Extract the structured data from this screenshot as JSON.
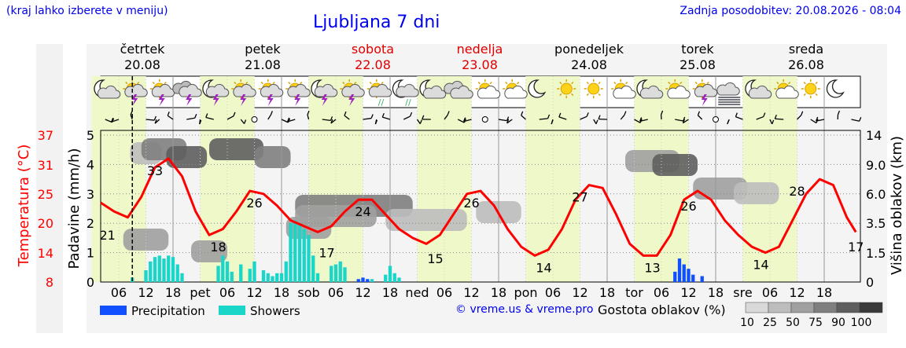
{
  "header": {
    "note": "(kraj lahko izberete v meniju)",
    "title": "Ljubljana 7 dni",
    "updated": "Zadnja posodobitev: 20.08.2026 - 08:04"
  },
  "days": [
    {
      "name": "četrtek",
      "date": "20.08",
      "weekend": false,
      "sym": [
        "moon-cloud",
        "sun-thunder",
        "sun-thunder",
        "cloud-thunder"
      ]
    },
    {
      "name": "petek",
      "date": "21.08",
      "weekend": false,
      "sym": [
        "moon-thunder",
        "sun-thunder",
        "sun-thunder",
        "sun-thunder"
      ]
    },
    {
      "name": "sobota",
      "date": "22.08",
      "weekend": true,
      "sym": [
        "moon-thunder",
        "sun-thunder",
        "sun-rain",
        "moon-rain"
      ]
    },
    {
      "name": "nedelja",
      "date": "23.08",
      "weekend": true,
      "sym": [
        "moon-cloud",
        "cloud",
        "sun-cloud",
        "sun-cloud"
      ]
    },
    {
      "name": "ponedeljek",
      "date": "24.08",
      "weekend": false,
      "sym": [
        "moon",
        "sun",
        "sun",
        "sun-cloud"
      ]
    },
    {
      "name": "torek",
      "date": "25.08",
      "weekend": false,
      "sym": [
        "moon-cloud",
        "sun-cloud",
        "sun-thunder",
        "fog"
      ]
    },
    {
      "name": "sreda",
      "date": "26.08",
      "weekend": false,
      "sym": [
        "moon-cloud",
        "sun-cloud",
        "sun",
        "moon"
      ]
    }
  ],
  "chart_data": {
    "type": "line",
    "xaxis": {
      "tick_labels": [
        "06",
        "12",
        "18",
        "pet",
        "06",
        "12",
        "18",
        "sob",
        "06",
        "12",
        "18",
        "ned",
        "06",
        "12",
        "18",
        "pon",
        "06",
        "12",
        "18",
        "tor",
        "06",
        "12",
        "18",
        "sre",
        "06",
        "12",
        "18"
      ]
    },
    "left_axis_precip": {
      "label": "Padavine (mm/h)",
      "ticks": [
        "0",
        "1",
        "2",
        "3",
        "4",
        "5"
      ],
      "ylim": [
        0,
        5
      ]
    },
    "left_axis_temp": {
      "label": "Temperatura (°C)",
      "ticks": [
        "8",
        "14",
        "20",
        "25",
        "31",
        "37"
      ],
      "color": "#ff0000"
    },
    "right_axis_cloud": {
      "label": "Višina oblakov (km)",
      "ticks": [
        "0",
        "1.5",
        "3.5",
        "6.0",
        "9.0",
        "14"
      ]
    },
    "temperature": {
      "color": "#ff0000",
      "x_hours": [
        0,
        3,
        6,
        9,
        12,
        15,
        18,
        21,
        24,
        27,
        30,
        33,
        36,
        39,
        42,
        45,
        48,
        51,
        54,
        57,
        60,
        63,
        66,
        69,
        72,
        75,
        78,
        81,
        84,
        87,
        90,
        93,
        96,
        99,
        102,
        105,
        108,
        111,
        114,
        117,
        120,
        123,
        126,
        129,
        132,
        135,
        138,
        141,
        144,
        147,
        150,
        153,
        156,
        159,
        162,
        165,
        167
      ],
      "values_precip_scale": [
        2.7,
        2.4,
        2.2,
        2.9,
        3.9,
        4.2,
        3.6,
        2.4,
        1.6,
        1.8,
        2.4,
        3.1,
        3.0,
        2.6,
        2.1,
        1.9,
        1.7,
        1.9,
        2.4,
        2.8,
        2.8,
        2.3,
        1.8,
        1.5,
        1.3,
        1.6,
        2.3,
        3.0,
        3.1,
        2.6,
        1.8,
        1.2,
        0.9,
        1.1,
        1.8,
        2.8,
        3.3,
        3.2,
        2.3,
        1.3,
        0.9,
        0.9,
        1.6,
        2.8,
        3.1,
        2.8,
        2.1,
        1.6,
        1.2,
        1.0,
        1.2,
        2.1,
        3.0,
        3.5,
        3.3,
        2.2,
        1.7
      ],
      "labels": [
        {
          "t": "21",
          "h": 1.5,
          "v": 1.6
        },
        {
          "t": "33",
          "h": 12,
          "v": 3.8
        },
        {
          "t": "18",
          "h": 26,
          "v": 1.2
        },
        {
          "t": "26",
          "h": 34,
          "v": 2.7
        },
        {
          "t": "17",
          "h": 50,
          "v": 1.0
        },
        {
          "t": "24",
          "h": 58,
          "v": 2.4
        },
        {
          "t": "15",
          "h": 74,
          "v": 0.8
        },
        {
          "t": "26",
          "h": 82,
          "v": 2.7
        },
        {
          "t": "14",
          "h": 98,
          "v": 0.5
        },
        {
          "t": "27",
          "h": 106,
          "v": 2.9
        },
        {
          "t": "13",
          "h": 122,
          "v": 0.5
        },
        {
          "t": "26",
          "h": 130,
          "v": 2.6
        },
        {
          "t": "14",
          "h": 146,
          "v": 0.6
        },
        {
          "t": "28",
          "h": 154,
          "v": 3.1
        },
        {
          "t": "17",
          "h": 167,
          "v": 1.2
        }
      ]
    },
    "showers": {
      "color": "#1ad6c8",
      "bars": [
        [
          7,
          0.15
        ],
        [
          10,
          0.4
        ],
        [
          11,
          0.7
        ],
        [
          12,
          0.85
        ],
        [
          13,
          0.9
        ],
        [
          14,
          0.8
        ],
        [
          15,
          0.9
        ],
        [
          16,
          0.85
        ],
        [
          17,
          0.6
        ],
        [
          18,
          0.3
        ],
        [
          26,
          0.55
        ],
        [
          27,
          0.9
        ],
        [
          28,
          0.7
        ],
        [
          29,
          0.35
        ],
        [
          31,
          0.6
        ],
        [
          33,
          0.45
        ],
        [
          34,
          0.7
        ],
        [
          36,
          0.4
        ],
        [
          37,
          0.3
        ],
        [
          38,
          0.2
        ],
        [
          39,
          0.3
        ],
        [
          40,
          0.3
        ],
        [
          41,
          0.7
        ],
        [
          42,
          2.0
        ],
        [
          43,
          2.1
        ],
        [
          44,
          2.0
        ],
        [
          45,
          1.8
        ],
        [
          46,
          1.6
        ],
        [
          47,
          0.9
        ],
        [
          48,
          0.3
        ],
        [
          51,
          0.55
        ],
        [
          52,
          0.6
        ],
        [
          53,
          0.7
        ],
        [
          54,
          0.5
        ],
        [
          60,
          0.1
        ],
        [
          63,
          0.25
        ],
        [
          64,
          0.55
        ],
        [
          65,
          0.3
        ],
        [
          66,
          0.15
        ]
      ]
    },
    "precipitation": {
      "color": "#1050ff",
      "bars": [
        [
          57,
          0.1
        ],
        [
          58,
          0.15
        ],
        [
          59,
          0.1
        ],
        [
          127,
          0.35
        ],
        [
          128,
          0.8
        ],
        [
          129,
          0.6
        ],
        [
          130,
          0.45
        ],
        [
          131,
          0.25
        ],
        [
          133,
          0.2
        ]
      ]
    },
    "legend": [
      {
        "name": "Precipitation",
        "color": "#1050ff"
      },
      {
        "name": "Showers",
        "color": "#1ad6c8"
      }
    ],
    "cloud_legend": {
      "title": "Gostota oblakov (%)",
      "labels": [
        "10",
        "25",
        "50",
        "75",
        "90",
        "100"
      ],
      "colors": [
        "#d9d9d9",
        "#bdbdbd",
        "#a0a0a0",
        "#7f7f7f",
        "#5e5e5e",
        "#3a3a3a"
      ]
    },
    "observation_marker_hour": 7,
    "grid": true
  },
  "credit": "© vreme.us & vreme.pro"
}
